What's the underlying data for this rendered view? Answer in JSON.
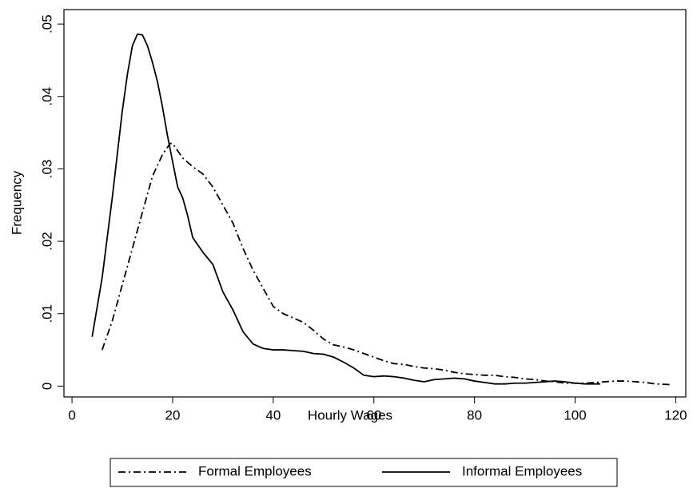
{
  "chart_data": {
    "type": "line",
    "xlabel": "Hourly Wages",
    "ylabel": "Frequency",
    "xlim": [
      -1.6,
      122
    ],
    "ylim": [
      -0.0015,
      0.052
    ],
    "xticks": [
      0,
      20,
      40,
      60,
      80,
      100,
      120
    ],
    "yticks": [
      0,
      {
        "value": 0.01,
        "label": ".01"
      },
      {
        "value": 0.02,
        "label": ".02"
      },
      {
        "value": 0.03,
        "label": ".03"
      },
      {
        "value": 0.04,
        "label": ".04"
      },
      {
        "value": 0.05,
        "label": ".05"
      }
    ],
    "grid": false,
    "legend": "bottom",
    "series": [
      {
        "name": "Formal Employees",
        "color": "#000000",
        "line_style": "dashdot",
        "x": [
          6,
          8,
          10,
          12,
          14,
          16,
          18,
          19.5,
          20,
          22,
          24,
          26,
          28,
          30,
          32,
          34,
          36,
          38,
          40,
          42,
          44,
          46,
          48,
          50,
          52,
          54,
          56,
          58,
          60,
          62,
          64,
          66,
          68,
          70,
          72,
          74,
          76,
          78,
          80,
          82,
          84,
          86,
          88,
          90,
          92,
          94,
          96,
          98,
          100,
          102,
          104,
          106,
          108,
          110,
          112,
          114,
          116,
          119
        ],
        "values": [
          0.005,
          0.009,
          0.014,
          0.019,
          0.024,
          0.029,
          0.032,
          0.0335,
          0.0335,
          0.0315,
          0.0303,
          0.0293,
          0.0275,
          0.025,
          0.0225,
          0.019,
          0.016,
          0.0135,
          0.011,
          0.01,
          0.0094,
          0.0088,
          0.0077,
          0.0065,
          0.0057,
          0.0054,
          0.005,
          0.0045,
          0.004,
          0.0035,
          0.0031,
          0.003,
          0.0027,
          0.0025,
          0.0024,
          0.0022,
          0.0019,
          0.0017,
          0.0016,
          0.0015,
          0.0015,
          0.0013,
          0.0012,
          0.001,
          0.0009,
          0.0007,
          0.0006,
          0.0004,
          0.0004,
          0.0004,
          0.0005,
          0.0006,
          0.0007,
          0.0007,
          0.0006,
          0.0005,
          0.0003,
          0.0002
        ]
      },
      {
        "name": "Informal Employees",
        "color": "#000000",
        "line_style": "solid",
        "x": [
          4,
          6,
          8,
          10,
          11,
          12,
          13,
          14,
          15,
          16,
          17,
          18,
          19,
          20,
          21,
          22,
          23,
          24,
          26,
          28,
          30,
          32,
          34,
          36,
          38,
          40,
          42,
          44,
          46,
          48,
          50,
          52,
          54,
          56,
          58,
          60,
          62,
          64,
          66,
          68,
          70,
          72,
          74,
          76,
          78,
          80,
          82,
          84,
          86,
          88,
          90,
          92,
          94,
          96,
          98,
          100,
          102,
          105
        ],
        "values": [
          0.0068,
          0.015,
          0.026,
          0.038,
          0.043,
          0.047,
          0.0486,
          0.0485,
          0.047,
          0.0447,
          0.042,
          0.0385,
          0.0345,
          0.031,
          0.0275,
          0.026,
          0.0235,
          0.0205,
          0.0185,
          0.0168,
          0.013,
          0.0105,
          0.0075,
          0.0058,
          0.0052,
          0.005,
          0.005,
          0.0049,
          0.0048,
          0.0045,
          0.0044,
          0.004,
          0.0033,
          0.0025,
          0.0015,
          0.0013,
          0.0014,
          0.0013,
          0.0011,
          0.0008,
          0.0006,
          0.0009,
          0.001,
          0.0011,
          0.001,
          0.0007,
          0.0005,
          0.0003,
          0.0003,
          0.0004,
          0.0004,
          0.0005,
          0.0006,
          0.0007,
          0.0006,
          0.0004,
          0.0003,
          0.0003
        ]
      }
    ]
  }
}
